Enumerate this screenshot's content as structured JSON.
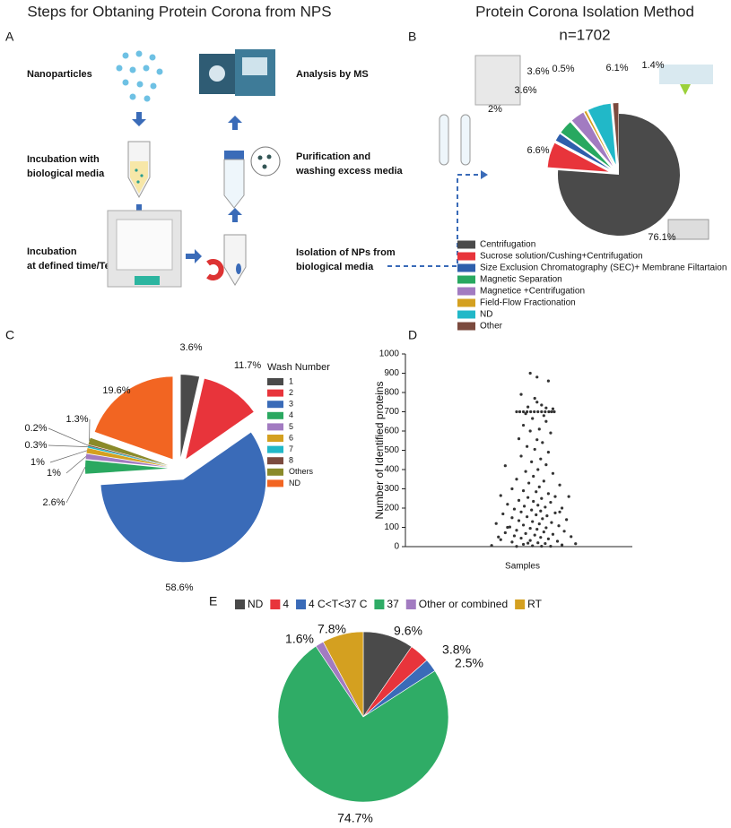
{
  "diagram": {
    "label": "A",
    "title": "Steps for Obtaning Protein Corona from NPS",
    "steps": [
      {
        "lines": [
          "Nanoparticles"
        ]
      },
      {
        "lines": [
          "Incubation with",
          "biological media"
        ]
      },
      {
        "lines": [
          "Incubation",
          "at defined time/Temp"
        ]
      },
      {
        "lines": [
          "Analysis by MS"
        ]
      },
      {
        "lines": [
          "Purification and",
          "washing excess media"
        ]
      },
      {
        "lines": [
          "Isolation of NPs from",
          "biological media"
        ]
      }
    ]
  },
  "chart_data": [
    {
      "type": "pie",
      "label": "B",
      "title": "Protein Corona Isolation Method",
      "subtitle": "n=1702",
      "categories": [
        "Centrifugation",
        "Sucrose solution/Cushing+Centrifugation",
        "Size Exclusion Chromatography (SEC)+ Membrane Filtartaion",
        "Magnetic Separation",
        "Magnetice +Centrifugation",
        "Field-Flow Fractionation",
        "ND",
        "Other"
      ],
      "values": [
        76.1,
        6.6,
        2,
        3.6,
        3.6,
        0.5,
        6.1,
        1.4
      ],
      "value_labels": [
        "76.1%",
        "6.6%",
        "2%",
        "3.6%",
        "3.6%",
        "0.5%",
        "6.1%",
        "1.4%"
      ],
      "colors": [
        "#4a4a4a",
        "#e8343b",
        "#2e5fac",
        "#28a860",
        "#a27bc1",
        "#d4a020",
        "#21b8c8",
        "#7b4a3e"
      ],
      "explode": true,
      "legend": "bottom"
    },
    {
      "type": "pie",
      "label": "C",
      "legend_title": "Wash Number",
      "categories": [
        "1",
        "2",
        "3",
        "4",
        "5",
        "6",
        "7",
        "8",
        "Others",
        "ND"
      ],
      "values": [
        3.6,
        11.7,
        58.6,
        2.6,
        1,
        1,
        0.3,
        0.2,
        1.3,
        19.6
      ],
      "value_labels": [
        "3.6%",
        "11.7%",
        "58.6%",
        "2.6%",
        "1%",
        "1%",
        "0.3%",
        "0.2%",
        "1.3%",
        "19.6%"
      ],
      "colors": [
        "#4a4a4a",
        "#e8343b",
        "#3a6bb8",
        "#2aa860",
        "#a27bc1",
        "#d4a020",
        "#21b8c8",
        "#7b4a3e",
        "#8a8a2a",
        "#f26522"
      ],
      "explode": true,
      "legend": "right"
    },
    {
      "type": "scatter",
      "label": "D",
      "ylabel": "Number of Identified proteins",
      "xlabel": "Samples",
      "color": "#333333",
      "x": [
        -0.05,
        0.1,
        0.35,
        -0.25,
        0.05,
        0.1,
        0.2,
        -0.1,
        0.3,
        0.45,
        -0.35,
        -0.28,
        -0.2,
        -0.12,
        -0.04,
        0.04,
        0.12,
        0.2,
        0.28,
        0.36,
        0.42,
        0.48,
        -0.15,
        0.25,
        0.0,
        0.3,
        -0.2,
        0.15,
        -0.05,
        0.4,
        -0.3,
        0.1,
        0.22,
        -0.12,
        0.05,
        0.35,
        -0.25,
        0.18,
        -0.02,
        0.3,
        -0.6,
        0.12,
        -0.15,
        0.45,
        0.02,
        -0.35,
        0.25,
        -0.08,
        0.6,
        0.15,
        -0.45,
        -0.2,
        0.08,
        0.35,
        -0.7,
        0.5,
        -0.1,
        0.2,
        -0.3,
        0.02,
        0.4,
        -0.55,
        0.12,
        -0.18,
        0.28,
        0.65,
        -0.4,
        -0.02,
        0.18,
        -0.25,
        0.5,
        -0.65,
        0.08,
        0.32,
        -0.12,
        -0.45,
        0.22,
        0.75,
        -0.3,
        0.0,
        0.42,
        -0.8,
        0.15,
        -0.2,
        0.58,
        -0.5,
        0.3,
        -0.05,
        0.1,
        -0.35,
        0.7,
        0.25,
        -0.6,
        -0.15,
        0.45,
        0.05,
        -0.4,
        0.85,
        0.18,
        -0.25,
        0.35,
        -0.7,
        -0.05,
        0.55,
        -0.45,
        0.12,
        0.28,
        -0.2,
        0.65,
        -0.9,
        0.0,
        0.4,
        -0.35,
        0.95,
        -0.55,
        0.6,
        0.8,
        -0.75,
        0.2,
        -0.1
      ],
      "values": [
        900,
        880,
        860,
        790,
        770,
        750,
        735,
        725,
        720,
        715,
        700,
        700,
        700,
        700,
        700,
        700,
        700,
        700,
        700,
        700,
        700,
        700,
        690,
        680,
        665,
        650,
        630,
        610,
        600,
        590,
        560,
        555,
        540,
        520,
        505,
        490,
        470,
        455,
        440,
        425,
        420,
        400,
        390,
        380,
        365,
        350,
        340,
        330,
        320,
        310,
        300,
        290,
        285,
        275,
        265,
        260,
        255,
        250,
        240,
        235,
        230,
        220,
        215,
        210,
        205,
        200,
        195,
        190,
        185,
        180,
        175,
        170,
        165,
        160,
        155,
        150,
        145,
        140,
        135,
        130,
        125,
        120,
        118,
        112,
        108,
        102,
        98,
        95,
        90,
        85,
        80,
        76,
        72,
        68,
        64,
        60,
        56,
        52,
        48,
        44,
        40,
        36,
        32,
        28,
        24,
        20,
        16,
        12,
        9,
        6,
        4,
        2,
        1,
        15,
        100,
        180,
        260,
        50,
        2,
        18
      ],
      "xlim": [
        -2.8,
        2.2
      ],
      "ylim": [
        0,
        1000
      ],
      "yticks": [
        0,
        100,
        200,
        300,
        400,
        500,
        600,
        700,
        800,
        900,
        1000
      ],
      "grid": false
    },
    {
      "type": "pie",
      "label": "E",
      "categories": [
        "ND",
        "4",
        "4 C<T<37 C",
        "37",
        "Other or combined",
        "RT"
      ],
      "values": [
        9.6,
        3.8,
        2.5,
        74.7,
        1.6,
        7.8
      ],
      "value_labels": [
        "9.6%",
        "3.8%",
        "2.5%",
        "74.7%",
        "1.6%",
        "7.8%"
      ],
      "colors": [
        "#4a4a4a",
        "#e8343b",
        "#3a6bb8",
        "#2fac66",
        "#a27bc1",
        "#d4a020"
      ],
      "explode": false,
      "legend": "top"
    }
  ]
}
